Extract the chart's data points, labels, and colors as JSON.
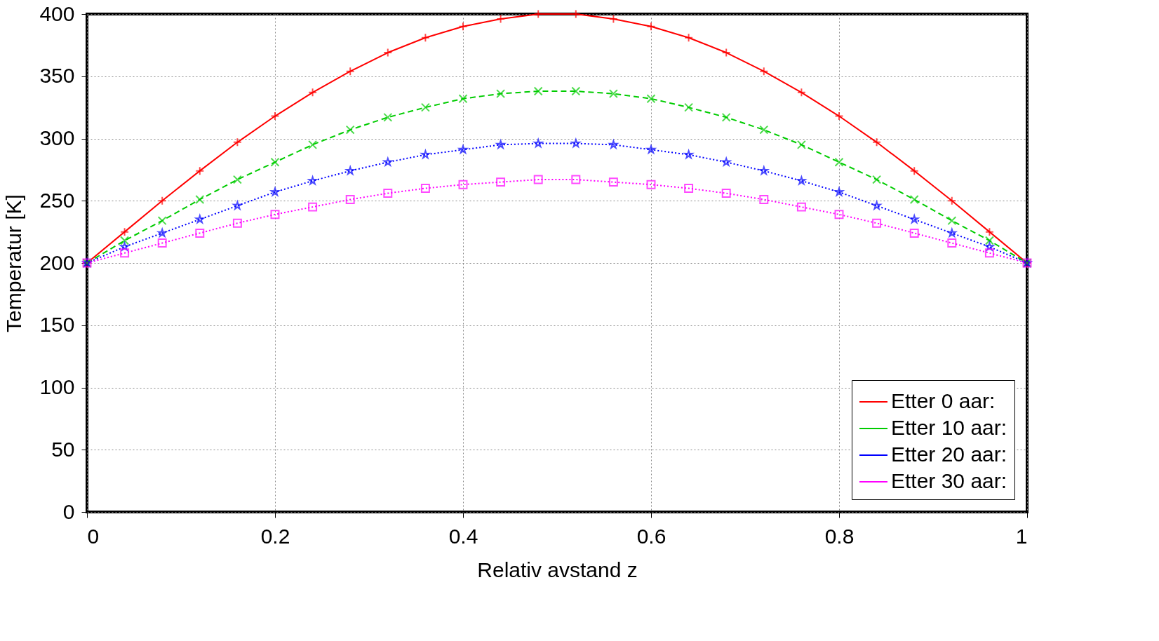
{
  "chart_data": {
    "type": "line",
    "xlabel": "Relativ avstand z",
    "ylabel": "Temperatur [K]",
    "x": [
      0,
      0.04,
      0.08,
      0.12,
      0.16,
      0.2,
      0.24,
      0.28,
      0.32,
      0.36,
      0.4,
      0.44,
      0.48,
      0.52,
      0.56,
      0.6,
      0.64,
      0.68,
      0.72,
      0.76,
      0.8,
      0.84,
      0.88,
      0.92,
      0.96,
      1
    ],
    "series": [
      {
        "name": "Etter 0 aar:",
        "color": "#ff0000",
        "marker": "cross",
        "line_style": "solid",
        "values": [
          200,
          225,
          250,
          274,
          297,
          318,
          337,
          354,
          369,
          381,
          390,
          396,
          400,
          400,
          396,
          390,
          381,
          369,
          354,
          337,
          318,
          297,
          274,
          250,
          225,
          200
        ]
      },
      {
        "name": "Etter 10 aar:",
        "color": "#00cc00",
        "marker": "x",
        "line_style": "dashed",
        "values": [
          200,
          218,
          234,
          251,
          267,
          281,
          295,
          307,
          317,
          325,
          332,
          336,
          338,
          338,
          336,
          332,
          325,
          317,
          307,
          295,
          281,
          267,
          251,
          234,
          218,
          200
        ]
      },
      {
        "name": "Etter 20 aar:",
        "color": "#0000ff",
        "marker": "star",
        "line_style": "dotted",
        "values": [
          200,
          213,
          224,
          235,
          246,
          257,
          266,
          274,
          281,
          287,
          291,
          295,
          296,
          296,
          295,
          291,
          287,
          281,
          274,
          266,
          257,
          246,
          235,
          224,
          213,
          200
        ]
      },
      {
        "name": "Etter 30 aar:",
        "color": "#ff00ff",
        "marker": "square",
        "line_style": "dotted",
        "values": [
          200,
          208,
          216,
          224,
          232,
          239,
          245,
          251,
          256,
          260,
          263,
          265,
          267,
          267,
          265,
          263,
          260,
          256,
          251,
          245,
          239,
          232,
          224,
          216,
          208,
          200
        ]
      }
    ],
    "xlim": [
      0,
      1
    ],
    "ylim": [
      0,
      400
    ],
    "xticks": [
      0,
      0.2,
      0.4,
      0.6,
      0.8,
      1
    ],
    "yticks": [
      0,
      50,
      100,
      150,
      200,
      250,
      300,
      350,
      400
    ],
    "grid": true,
    "legend": "bottom right"
  }
}
